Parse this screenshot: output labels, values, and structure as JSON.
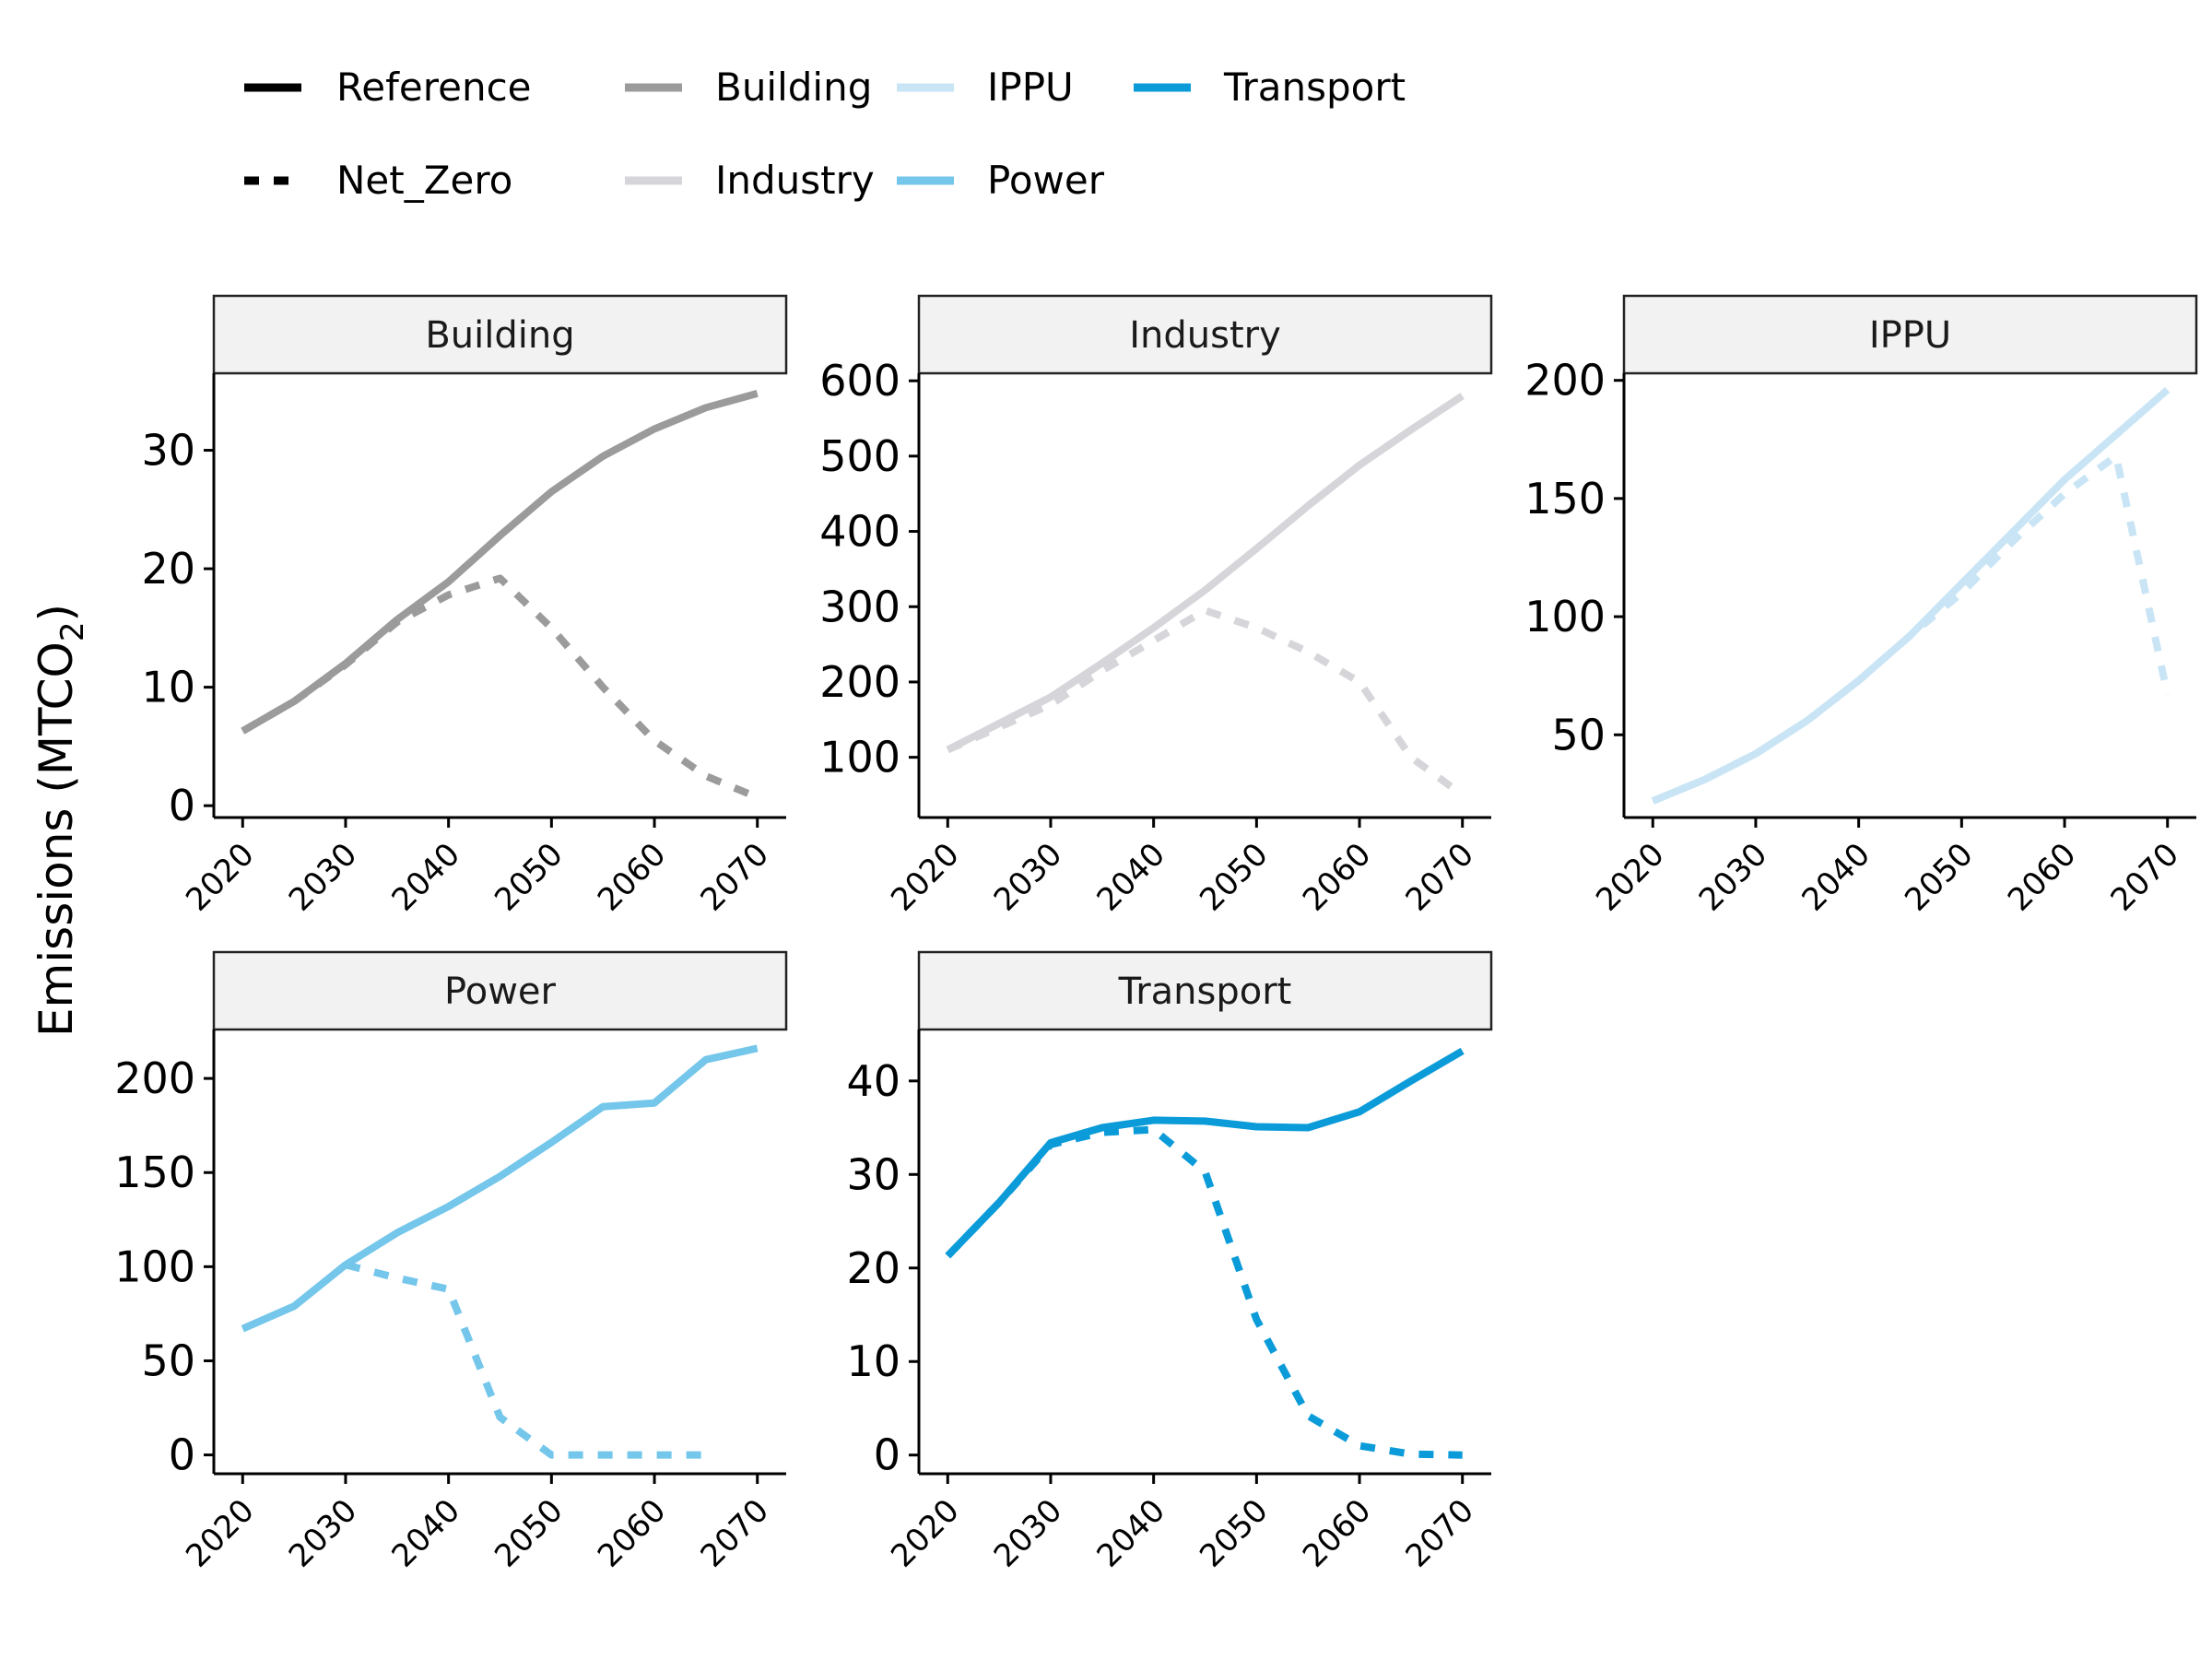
{
  "legend": {
    "linetypes": [
      {
        "name": "Reference",
        "dash": "solid"
      },
      {
        "name": "Net_Zero",
        "dash": "dashed"
      }
    ],
    "sectors": [
      {
        "name": "Building",
        "color": "#9b9b9b"
      },
      {
        "name": "Industry",
        "color": "#d6d6da"
      },
      {
        "name": "IPPU",
        "color": "#c9e5f5"
      },
      {
        "name": "Power",
        "color": "#74c6ea"
      },
      {
        "name": "Transport",
        "color": "#0a9bd8"
      }
    ]
  },
  "axis": {
    "ylabel_main": "Emissions (MTCO",
    "ylabel_sub": "2",
    "ylabel_close": ")"
  },
  "chart_data": [
    {
      "type": "line",
      "title": "Building",
      "color": "#9b9b9b",
      "x": [
        2020,
        2025,
        2030,
        2035,
        2040,
        2045,
        2050,
        2055,
        2060,
        2065,
        2070
      ],
      "xticks": [
        "2020",
        "2030",
        "2040",
        "2050",
        "2060",
        "2070"
      ],
      "yticks": [
        "0",
        "10",
        "20",
        "30"
      ],
      "ylim": [
        -1,
        36.5
      ],
      "series": [
        {
          "name": "Reference",
          "values": [
            6.3,
            8.8,
            12,
            15.7,
            18.9,
            22.8,
            26.5,
            29.5,
            31.8,
            33.6,
            34.8
          ]
        },
        {
          "name": "Net_Zero",
          "values": [
            6.3,
            8.8,
            11.9,
            15.5,
            17.8,
            19.2,
            15,
            10,
            5.5,
            2.5,
            0.7
          ]
        }
      ]
    },
    {
      "type": "line",
      "title": "Industry",
      "color": "#d6d6da",
      "x": [
        2020,
        2025,
        2030,
        2035,
        2040,
        2045,
        2050,
        2055,
        2060,
        2065,
        2070
      ],
      "xticks": [
        "2020",
        "2030",
        "2040",
        "2050",
        "2060",
        "2070"
      ],
      "yticks": [
        "100",
        "200",
        "300",
        "400",
        "500",
        "600"
      ],
      "ylim": [
        20,
        610
      ],
      "series": [
        {
          "name": "Reference",
          "values": [
            110,
            145,
            180,
            225,
            272,
            322,
            377,
            434,
            488,
            535,
            580
          ]
        },
        {
          "name": "Net_Zero",
          "values": [
            110,
            140,
            170,
            215,
            255,
            295,
            272,
            240,
            200,
            100,
            50
          ]
        }
      ]
    },
    {
      "type": "line",
      "title": "IPPU",
      "color": "#c9e5f5",
      "x": [
        2020,
        2025,
        2030,
        2035,
        2040,
        2045,
        2050,
        2055,
        2060,
        2065,
        2070
      ],
      "xticks": [
        "2020",
        "2030",
        "2040",
        "2050",
        "2060",
        "2070"
      ],
      "yticks": [
        "50",
        "100",
        "150",
        "200"
      ],
      "ylim": [
        15,
        203
      ],
      "series": [
        {
          "name": "Reference",
          "values": [
            22,
            31,
            42,
            56,
            73,
            92,
            114,
            136,
            158,
            177,
            196
          ]
        },
        {
          "name": "Net_Zero",
          "values": [
            22,
            31,
            42,
            56,
            73,
            92,
            110,
            132,
            152,
            168,
            67
          ]
        }
      ]
    },
    {
      "type": "line",
      "title": "Power",
      "color": "#74c6ea",
      "x": [
        2020,
        2025,
        2030,
        2035,
        2040,
        2045,
        2050,
        2055,
        2060,
        2065,
        2070
      ],
      "xticks": [
        "2020",
        "2030",
        "2040",
        "2050",
        "2060",
        "2070"
      ],
      "yticks": [
        "0",
        "50",
        "100",
        "150",
        "200"
      ],
      "ylim": [
        -10,
        226
      ],
      "series": [
        {
          "name": "Reference",
          "values": [
            67,
            79,
            101,
            118,
            132,
            148,
            166,
            185,
            187,
            210,
            216
          ]
        },
        {
          "name": "Net_Zero",
          "values": [
            null,
            null,
            101,
            94,
            88,
            20,
            0,
            0,
            0,
            0,
            null
          ]
        }
      ]
    },
    {
      "type": "line",
      "title": "Transport",
      "color": "#0a9bd8",
      "x": [
        2020,
        2025,
        2030,
        2035,
        2040,
        2045,
        2050,
        2055,
        2060,
        2065,
        2070
      ],
      "xticks": [
        "2020",
        "2030",
        "2040",
        "2050",
        "2060",
        "2070"
      ],
      "yticks": [
        "0",
        "10",
        "20",
        "30",
        "40"
      ],
      "ylim": [
        -2,
        45.5
      ],
      "series": [
        {
          "name": "Reference",
          "values": [
            21.3,
            27,
            33.4,
            35,
            35.8,
            35.7,
            35.1,
            35,
            36.7,
            40,
            43.2
          ]
        },
        {
          "name": "Net_Zero",
          "values": [
            21.3,
            27,
            33.2,
            34.5,
            34.8,
            30.3,
            14.5,
            4.2,
            1,
            0.1,
            0
          ]
        }
      ]
    }
  ]
}
